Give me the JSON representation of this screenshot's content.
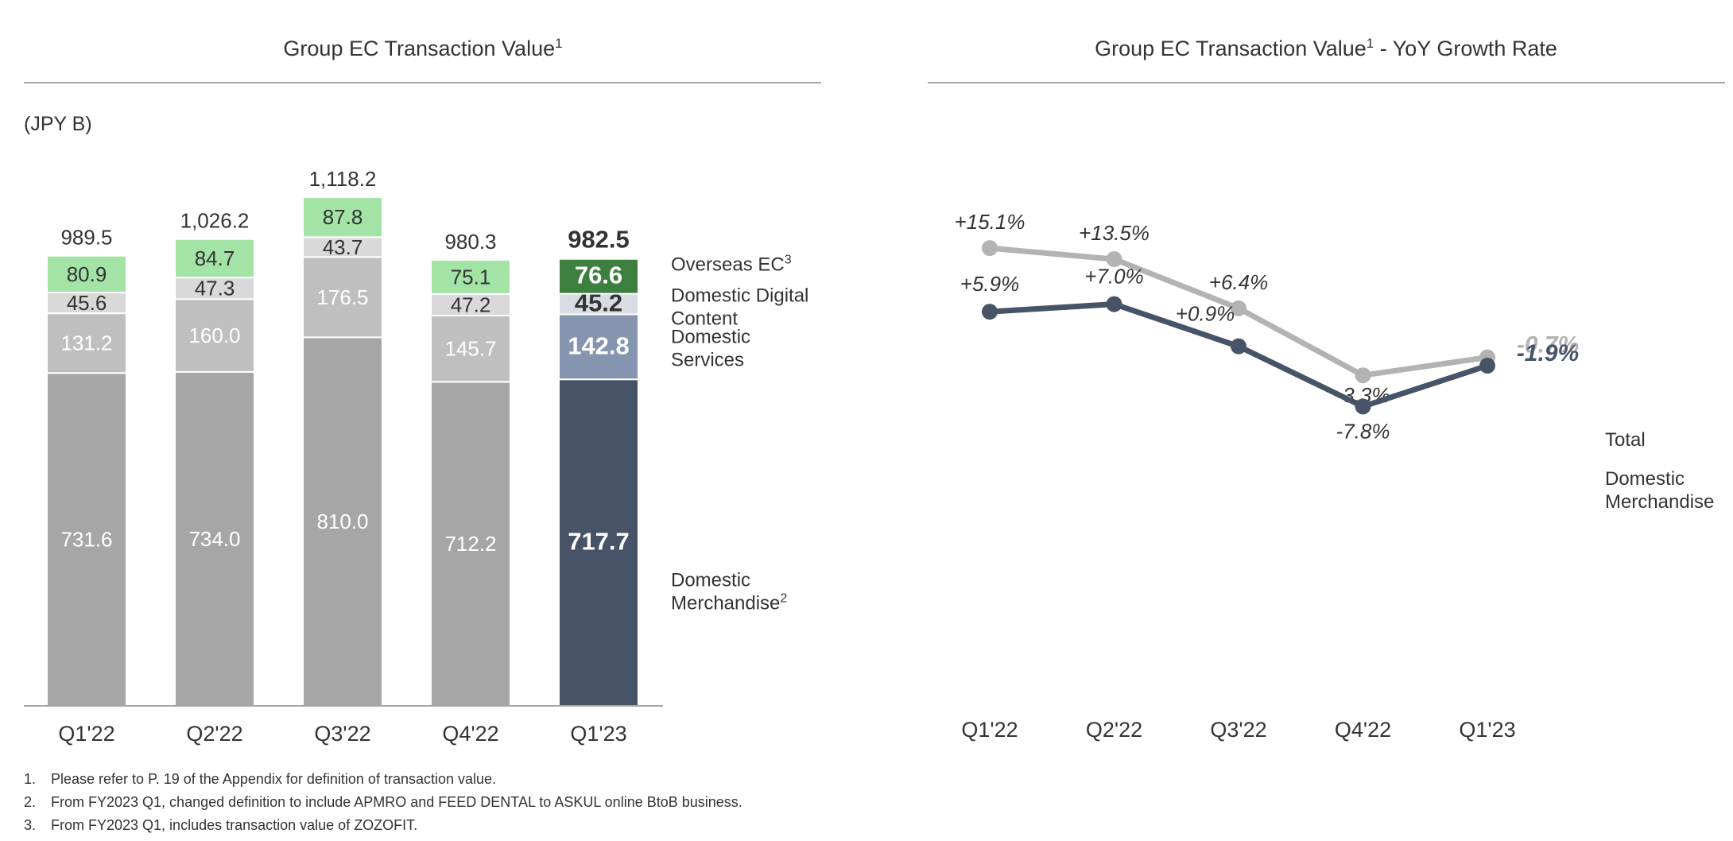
{
  "chart_data": [
    {
      "type": "bar",
      "stacked": true,
      "title": "Group EC Transaction Value",
      "title_superscript": "1",
      "unit_label": "(JPY B)",
      "categories": [
        "Q1'22",
        "Q2'22",
        "Q3'22",
        "Q4'22",
        "Q1'23"
      ],
      "totals": [
        "989.5",
        "1,026.2",
        "1,118.2",
        "980.3",
        "982.5"
      ],
      "totals_values": [
        989.5,
        1026.2,
        1118.2,
        980.3,
        982.5
      ],
      "series": [
        {
          "name": "Domestic Merchandise",
          "label_lines": [
            "Domestic",
            "Merchandise"
          ],
          "label_superscript": "2",
          "values": [
            731.6,
            734.0,
            810.0,
            712.2,
            717.7
          ],
          "labels": [
            "731.6",
            "734.0",
            "810.0",
            "712.2",
            "717.7"
          ],
          "color": "#a6a6a6",
          "highlight_color": "#475467",
          "label_color": "#ffffff",
          "highlight_label_color": "#ffffff"
        },
        {
          "name": "Domestic Services",
          "label_lines": [
            "Domestic",
            "Services"
          ],
          "label_superscript": "",
          "values": [
            131.2,
            160.0,
            176.5,
            145.7,
            142.8
          ],
          "labels": [
            "131.2",
            "160.0",
            "176.5",
            "145.7",
            "142.8"
          ],
          "color": "#bfbfbf",
          "highlight_color": "#8595b0",
          "label_color": "#ffffff",
          "highlight_label_color": "#ffffff"
        },
        {
          "name": "Domestic Digital Content",
          "label_lines": [
            "Domestic Digital",
            "Content"
          ],
          "label_superscript": "",
          "values": [
            45.6,
            47.3,
            43.7,
            47.2,
            45.2
          ],
          "labels": [
            "45.6",
            "47.3",
            "43.7",
            "47.2",
            "45.2"
          ],
          "color": "#d9d9d9",
          "highlight_color": "#d9dce3",
          "label_color": "#333333",
          "highlight_label_color": "#333333"
        },
        {
          "name": "Overseas EC",
          "label_lines": [
            "Overseas EC"
          ],
          "label_superscript": "3",
          "values": [
            80.9,
            84.7,
            87.8,
            75.1,
            76.6
          ],
          "labels": [
            "80.9",
            "84.7",
            "87.8",
            "75.1",
            "76.6"
          ],
          "color": "#a3e4a6",
          "highlight_color": "#3c7f3e",
          "label_color": "#333333",
          "highlight_label_color": "#ffffff"
        }
      ],
      "highlight_category_index": 4,
      "legend_placement": "right",
      "grid": false
    },
    {
      "type": "line",
      "title": "Group EC Transaction Value",
      "title_superscript": "1",
      "title_suffix": " - YoY Growth Rate",
      "categories": [
        "Q1'22",
        "Q2'22",
        "Q3'22",
        "Q4'22",
        "Q1'23"
      ],
      "series": [
        {
          "name": "Total",
          "label_lines": [
            "Total"
          ],
          "values": [
            15.1,
            13.5,
            6.4,
            -3.3,
            -0.7
          ],
          "labels": [
            "+15.1%",
            "+13.5%",
            "+6.4%",
            "-3.3%",
            "-0.7%"
          ],
          "color": "#b3b3b3"
        },
        {
          "name": "Domestic Merchandise",
          "label_lines": [
            "Domestic",
            "Merchandise"
          ],
          "values": [
            5.9,
            7.0,
            0.9,
            -7.8,
            -1.9
          ],
          "labels": [
            "+5.9%",
            "+7.0%",
            "+0.9%",
            "-7.8%",
            "-1.9%"
          ],
          "color": "#475467"
        }
      ],
      "legend_placement": "right",
      "grid": false
    }
  ],
  "footnotes": [
    {
      "num": "1.",
      "text": "Please refer to P. 19 of the Appendix for definition of transaction value."
    },
    {
      "num": "2.",
      "text": "From FY2023 Q1, changed definition to include APMRO and FEED DENTAL to ASKUL online BtoB business."
    },
    {
      "num": "3.",
      "text": "From FY2023 Q1, includes transaction value of ZOZOFIT."
    }
  ],
  "colors": {
    "text": "#333333",
    "rule": "#a6a6a6"
  }
}
